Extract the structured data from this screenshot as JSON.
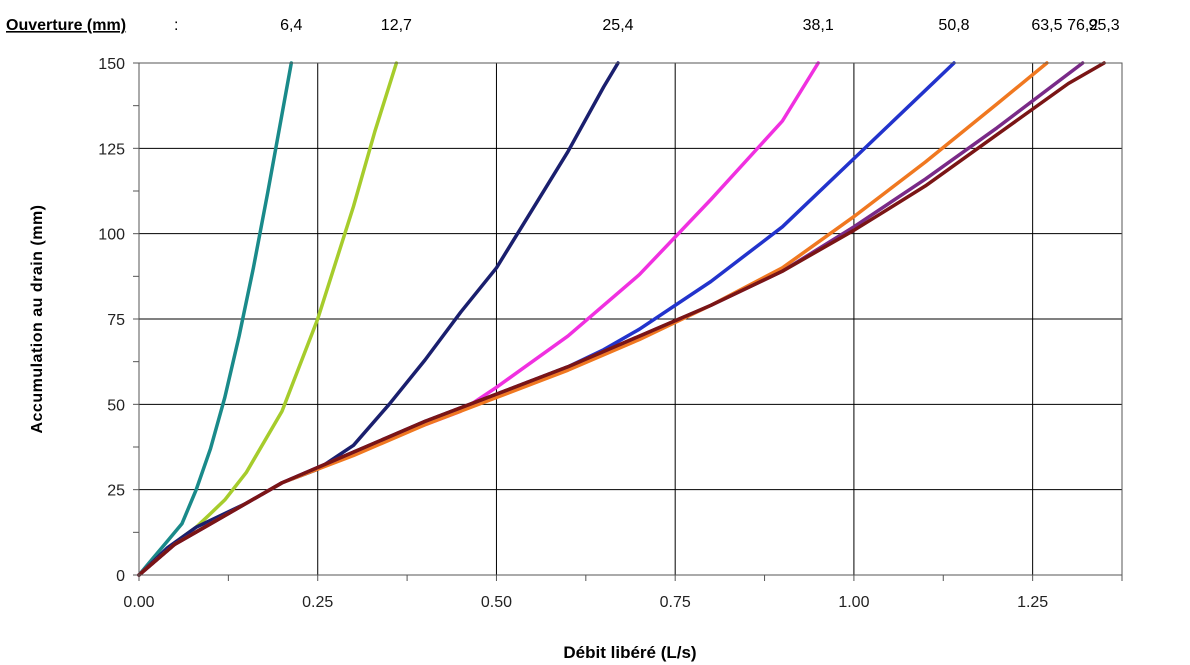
{
  "chart_data": {
    "type": "line",
    "header": {
      "title": "Ouverture (mm)",
      "colon": ":"
    },
    "xlabel": "Débit libéré (L/s)",
    "ylabel": "Accumulation au drain (mm)",
    "xlim": [
      0,
      1.375
    ],
    "ylim": [
      0,
      150
    ],
    "xticks": [
      0,
      0.25,
      0.5,
      0.75,
      1.0,
      1.25
    ],
    "xtick_labels": [
      "0.00",
      "0.25",
      "0.50",
      "0.75",
      "1.00",
      "1.25"
    ],
    "yticks": [
      0,
      25,
      50,
      75,
      100,
      125,
      150
    ],
    "ytick_labels": [
      "0",
      "25",
      "50",
      "75",
      "100",
      "125",
      "150"
    ],
    "grid": true,
    "legend": "top (header row)",
    "series": [
      {
        "name": "6,4",
        "color": "#1a8a8a",
        "points": [
          [
            0,
            0
          ],
          [
            0.02,
            5
          ],
          [
            0.04,
            10
          ],
          [
            0.06,
            15
          ],
          [
            0.08,
            25
          ],
          [
            0.1,
            37
          ],
          [
            0.12,
            52
          ],
          [
            0.14,
            70
          ],
          [
            0.16,
            90
          ],
          [
            0.18,
            112
          ],
          [
            0.2,
            135
          ],
          [
            0.213,
            150
          ]
        ]
      },
      {
        "name": "12,7",
        "color": "#a6cc2c",
        "points": [
          [
            0,
            0
          ],
          [
            0.03,
            6
          ],
          [
            0.06,
            11
          ],
          [
            0.08,
            14
          ],
          [
            0.1,
            18
          ],
          [
            0.12,
            22
          ],
          [
            0.15,
            30
          ],
          [
            0.2,
            48
          ],
          [
            0.25,
            75
          ],
          [
            0.3,
            108
          ],
          [
            0.33,
            130
          ],
          [
            0.36,
            150
          ]
        ]
      },
      {
        "name": "25,4",
        "color": "#1a1f6e",
        "points": [
          [
            0,
            0
          ],
          [
            0.04,
            8
          ],
          [
            0.08,
            14
          ],
          [
            0.15,
            21
          ],
          [
            0.2,
            27
          ],
          [
            0.25,
            31
          ],
          [
            0.3,
            38
          ],
          [
            0.35,
            50
          ],
          [
            0.4,
            63
          ],
          [
            0.45,
            77
          ],
          [
            0.5,
            90
          ],
          [
            0.55,
            107
          ],
          [
            0.6,
            124
          ],
          [
            0.65,
            143
          ],
          [
            0.67,
            150
          ]
        ]
      },
      {
        "name": "38,1",
        "color": "#f030e0",
        "points": [
          [
            0,
            0
          ],
          [
            0.05,
            9
          ],
          [
            0.1,
            15
          ],
          [
            0.2,
            27
          ],
          [
            0.3,
            36
          ],
          [
            0.4,
            44
          ],
          [
            0.45,
            48
          ],
          [
            0.5,
            55
          ],
          [
            0.6,
            70
          ],
          [
            0.7,
            88
          ],
          [
            0.8,
            110
          ],
          [
            0.9,
            133
          ],
          [
            0.95,
            150
          ]
        ]
      },
      {
        "name": "50,8",
        "color": "#2233cc",
        "points": [
          [
            0,
            0
          ],
          [
            0.05,
            9
          ],
          [
            0.1,
            15
          ],
          [
            0.2,
            27
          ],
          [
            0.3,
            36
          ],
          [
            0.4,
            45
          ],
          [
            0.5,
            53
          ],
          [
            0.6,
            61
          ],
          [
            0.65,
            66
          ],
          [
            0.7,
            72
          ],
          [
            0.8,
            86
          ],
          [
            0.9,
            102
          ],
          [
            1.0,
            122
          ],
          [
            1.1,
            142
          ],
          [
            1.14,
            150
          ]
        ]
      },
      {
        "name": "63,5",
        "color": "#f07820",
        "points": [
          [
            0,
            0
          ],
          [
            0.05,
            9
          ],
          [
            0.1,
            15
          ],
          [
            0.2,
            27
          ],
          [
            0.3,
            35
          ],
          [
            0.4,
            44
          ],
          [
            0.5,
            52
          ],
          [
            0.6,
            60
          ],
          [
            0.7,
            69
          ],
          [
            0.8,
            79
          ],
          [
            0.9,
            90
          ],
          [
            1.0,
            105
          ],
          [
            1.1,
            121
          ],
          [
            1.2,
            138
          ],
          [
            1.27,
            150
          ]
        ]
      },
      {
        "name": "76,2",
        "color": "#7a2a88",
        "points": [
          [
            0,
            0
          ],
          [
            0.05,
            9
          ],
          [
            0.1,
            15
          ],
          [
            0.2,
            27
          ],
          [
            0.3,
            36
          ],
          [
            0.4,
            45
          ],
          [
            0.5,
            53
          ],
          [
            0.6,
            61
          ],
          [
            0.7,
            70
          ],
          [
            0.8,
            79
          ],
          [
            0.9,
            89
          ],
          [
            1.0,
            102
          ],
          [
            1.1,
            116
          ],
          [
            1.2,
            131
          ],
          [
            1.32,
            150
          ]
        ]
      },
      {
        "name": "95,3",
        "color": "#7a1515",
        "points": [
          [
            0,
            0
          ],
          [
            0.05,
            9
          ],
          [
            0.1,
            15
          ],
          [
            0.2,
            27
          ],
          [
            0.3,
            36
          ],
          [
            0.4,
            45
          ],
          [
            0.5,
            53
          ],
          [
            0.6,
            61
          ],
          [
            0.7,
            70
          ],
          [
            0.8,
            79
          ],
          [
            0.9,
            89
          ],
          [
            1.0,
            101
          ],
          [
            1.1,
            114
          ],
          [
            1.2,
            129
          ],
          [
            1.3,
            144
          ],
          [
            1.35,
            150
          ]
        ]
      }
    ]
  }
}
